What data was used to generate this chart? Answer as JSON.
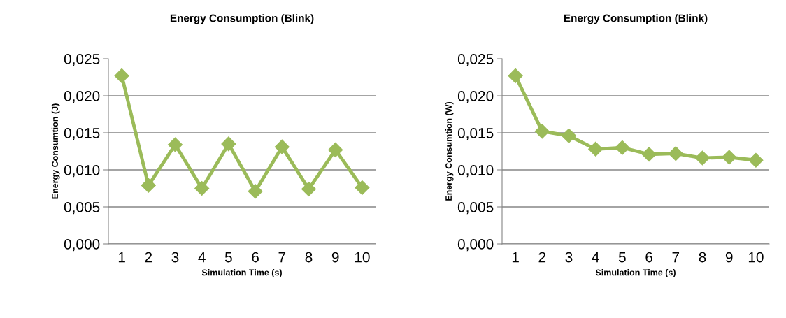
{
  "chart_data": [
    {
      "type": "line",
      "title": "Energy Consumption (Blink)",
      "xlabel": "Simulation Time (s)",
      "ylabel": "Energy Consumtion (J)",
      "categories": [
        "1",
        "2",
        "3",
        "4",
        "5",
        "6",
        "7",
        "8",
        "9",
        "10"
      ],
      "series": [
        {
          "color": "#9bbb59",
          "values": [
            0.0227,
            0.0079,
            0.0134,
            0.0075,
            0.0135,
            0.0071,
            0.0131,
            0.0074,
            0.0127,
            0.0076
          ]
        }
      ],
      "ylim": [
        0,
        0.025
      ],
      "yticks": [
        {
          "value": 0,
          "label": "0,000"
        },
        {
          "value": 0.005,
          "label": "0,005"
        },
        {
          "value": 0.01,
          "label": "0,010"
        },
        {
          "value": 0.015,
          "label": "0,015"
        },
        {
          "value": 0.02,
          "label": "0,020"
        },
        {
          "value": 0.025,
          "label": "0,025"
        }
      ],
      "grid": "y",
      "marker": "diamond",
      "line_style": "solid"
    },
    {
      "type": "line",
      "title": "Energy Consumption (Blink)",
      "xlabel": "Simulation Time (s)",
      "ylabel": "Energy Consumtion (W)",
      "categories": [
        "1",
        "2",
        "3",
        "4",
        "5",
        "6",
        "7",
        "8",
        "9",
        "10"
      ],
      "series": [
        {
          "color": "#9bbb59",
          "values": [
            0.0227,
            0.0152,
            0.0146,
            0.0128,
            0.013,
            0.0121,
            0.0122,
            0.0116,
            0.0117,
            0.0113
          ]
        }
      ],
      "ylim": [
        0,
        0.025
      ],
      "yticks": [
        {
          "value": 0,
          "label": "0,000"
        },
        {
          "value": 0.005,
          "label": "0,005"
        },
        {
          "value": 0.01,
          "label": "0,010"
        },
        {
          "value": 0.015,
          "label": "0,015"
        },
        {
          "value": 0.02,
          "label": "0,020"
        },
        {
          "value": 0.025,
          "label": "0,025"
        }
      ],
      "grid": "y",
      "marker": "diamond",
      "line_style": "solid"
    }
  ]
}
